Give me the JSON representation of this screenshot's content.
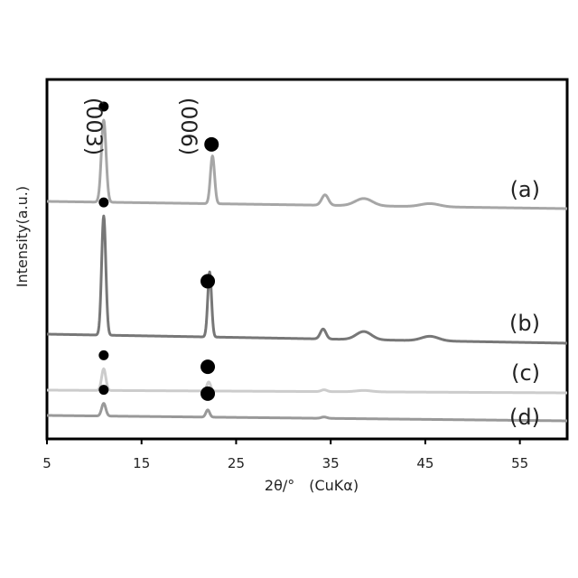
{
  "chart_data": {
    "type": "line",
    "xlabel": "2θ/°　(CuKα)",
    "ylabel": "Intensity(a.u.)",
    "xlim": [
      5,
      60
    ],
    "xticks": [
      "5",
      "15",
      "25",
      "35",
      "45",
      "55"
    ],
    "grid": false,
    "legend": "none",
    "peak_labels": [
      {
        "text": "(003)",
        "x": 11.0
      },
      {
        "text": "(006)",
        "x": 22.2
      }
    ],
    "series": [
      {
        "name": "(a)",
        "color": "#a6a6a6",
        "baseline": 0.0,
        "peaks": [
          {
            "x": 11.0,
            "h": 7.9,
            "w": 0.25
          },
          {
            "x": 22.5,
            "h": 4.6,
            "w": 0.22
          },
          {
            "x": 34.4,
            "h": 1.0,
            "w": 0.35
          },
          {
            "x": 38.5,
            "h": 0.7,
            "w": 0.9
          },
          {
            "x": 45.5,
            "h": 0.3,
            "w": 1.0
          }
        ],
        "markers": [
          {
            "x": 11.0,
            "size": "small"
          },
          {
            "x": 22.4,
            "size": "large"
          }
        ]
      },
      {
        "name": "(b)",
        "color": "#777777",
        "baseline": 0.0,
        "peaks": [
          {
            "x": 11.0,
            "h": 13.2,
            "w": 0.22
          },
          {
            "x": 22.2,
            "h": 7.2,
            "w": 0.2
          },
          {
            "x": 34.2,
            "h": 1.1,
            "w": 0.3
          },
          {
            "x": 38.5,
            "h": 0.9,
            "w": 0.8
          },
          {
            "x": 45.5,
            "h": 0.5,
            "w": 0.9
          }
        ],
        "markers": [
          {
            "x": 11.0,
            "size": "small"
          },
          {
            "x": 22.0,
            "size": "large"
          }
        ]
      },
      {
        "name": "(c)",
        "color": "#cccccc",
        "baseline": 0.0,
        "peaks": [
          {
            "x": 11.0,
            "h": 2.4,
            "w": 0.22
          },
          {
            "x": 22.1,
            "h": 1.0,
            "w": 0.2
          },
          {
            "x": 34.3,
            "h": 0.2,
            "w": 0.3
          },
          {
            "x": 38.5,
            "h": 0.15,
            "w": 0.8
          }
        ],
        "markers": [
          {
            "x": 11.0,
            "size": "small"
          },
          {
            "x": 22.0,
            "size": "large"
          }
        ]
      },
      {
        "name": "(d)",
        "color": "#999999",
        "baseline": 0.0,
        "peaks": [
          {
            "x": 11.0,
            "h": 1.4,
            "w": 0.22
          },
          {
            "x": 22.0,
            "h": 0.8,
            "w": 0.2
          },
          {
            "x": 34.3,
            "h": 0.15,
            "w": 0.3
          }
        ],
        "markers": [
          {
            "x": 11.0,
            "size": "small"
          },
          {
            "x": 22.0,
            "size": "large"
          }
        ]
      }
    ]
  }
}
